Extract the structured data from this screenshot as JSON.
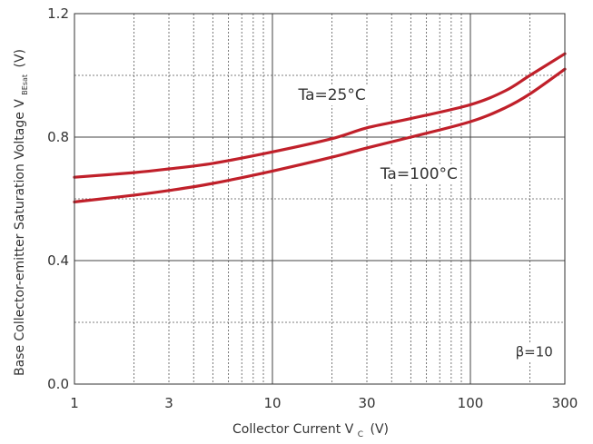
{
  "chart_data": {
    "type": "line",
    "title": "",
    "xlabel": {
      "main": "Collector Current V",
      "sub": "C",
      "unit": "(V)"
    },
    "ylabel": {
      "main": "Base Collector-emitter Saturation Voltage V",
      "sub": "BEsat",
      "unit": "(V)"
    },
    "x_scale": "log",
    "xlim": [
      1,
      300
    ],
    "ylim": [
      0,
      1.2
    ],
    "x_ticks": [
      1,
      3,
      10,
      30,
      100,
      300
    ],
    "x_tick_labels": [
      "1",
      "3",
      "10",
      "30",
      "100",
      "300"
    ],
    "y_ticks": [
      0,
      0.4,
      0.8,
      1.2
    ],
    "y_tick_labels": [
      "0.0",
      "0.4",
      "0.8",
      "1.2"
    ],
    "major_x_grid": [
      10,
      100
    ],
    "minor_x_grid": [
      2,
      3,
      4,
      5,
      6,
      7,
      8,
      9,
      20,
      30,
      40,
      50,
      60,
      70,
      80,
      90,
      200
    ],
    "major_y_grid": [
      0.4,
      0.8
    ],
    "minor_y_grid": [
      0.2,
      0.6,
      1.0
    ],
    "line_color": "#c0202a",
    "series": [
      {
        "annotation_key": "ta25",
        "x": [
          1,
          2,
          3,
          5,
          10,
          20,
          30,
          50,
          100,
          150,
          200,
          300
        ],
        "y": [
          0.67,
          0.685,
          0.697,
          0.715,
          0.752,
          0.795,
          0.83,
          0.86,
          0.905,
          0.95,
          1.0,
          1.07
        ]
      },
      {
        "annotation_key": "ta100",
        "x": [
          1,
          2,
          3,
          5,
          10,
          20,
          30,
          50,
          100,
          150,
          200,
          300
        ],
        "y": [
          0.59,
          0.612,
          0.627,
          0.65,
          0.69,
          0.735,
          0.765,
          0.8,
          0.85,
          0.895,
          0.94,
          1.02
        ]
      }
    ],
    "annotations": {
      "ta25": {
        "text": "Ta=25°C",
        "x": 20,
        "y": 0.92
      },
      "ta100": {
        "text": "Ta=100°C",
        "x": 55,
        "y": 0.665
      },
      "beta": {
        "text": "β=10",
        "x": 210,
        "y": 0.09
      }
    }
  }
}
